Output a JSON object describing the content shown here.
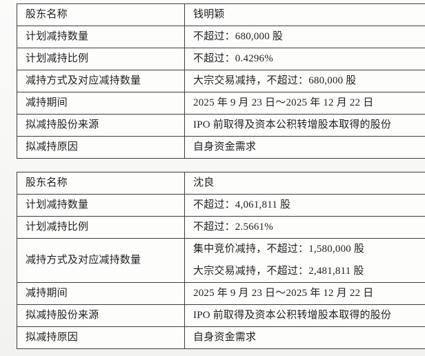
{
  "document": {
    "kind": "shareholder-reduction-plan-disclosure",
    "colors": {
      "page_background": "#f6f6f4",
      "cell_background": "#fdfdfc",
      "border": "#3c3c3c",
      "text": "#1f1f1f"
    }
  },
  "tables": [
    {
      "name": "shareholder-reduction-table-1",
      "rows": [
        {
          "label": "股东名称",
          "values": [
            "钱明颖"
          ]
        },
        {
          "label": "计划减持数量",
          "values": [
            "不超过：680,000 股"
          ]
        },
        {
          "label": "计划减持比例",
          "values": [
            "不超过：0.4296%"
          ]
        },
        {
          "label": "减持方式及对应减持数量",
          "values": [
            "大宗交易减持，不超过：680,000 股"
          ]
        },
        {
          "label": "减持期间",
          "values": [
            "2025 年 9 月 23 日～2025 年 12 月 22 日"
          ]
        },
        {
          "label": "拟减持股份来源",
          "values": [
            "IPO 前取得及资本公积转增股本取得的股份"
          ]
        },
        {
          "label": "拟减持原因",
          "values": [
            "自身资金需求"
          ]
        }
      ]
    },
    {
      "name": "shareholder-reduction-table-2",
      "rows": [
        {
          "label": "股东名称",
          "values": [
            "沈良"
          ]
        },
        {
          "label": "计划减持数量",
          "values": [
            "不超过：4,061,811 股"
          ]
        },
        {
          "label": "计划减持比例",
          "values": [
            "不超过：2.5661%"
          ]
        },
        {
          "label": "减持方式及对应减持数量",
          "values": [
            "集中竞价减持，不超过：1,580,000 股",
            "大宗交易减持，不超过：2,481,811 股"
          ]
        },
        {
          "label": "减持期间",
          "values": [
            "2025 年 9 月 23 日～2025 年 12 月 22 日"
          ]
        },
        {
          "label": "拟减持股份来源",
          "values": [
            "IPO 前取得及资本公积转增股本取得的股份"
          ]
        },
        {
          "label": "拟减持原因",
          "values": [
            "自身资金需求"
          ]
        }
      ]
    }
  ]
}
